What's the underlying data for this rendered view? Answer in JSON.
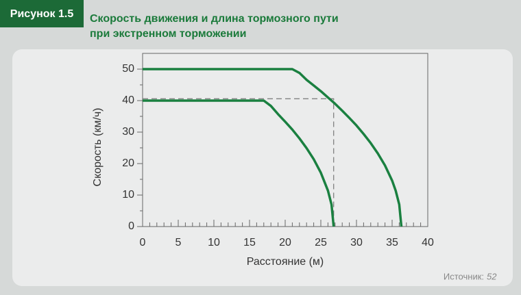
{
  "figure_label": "Рисунок 1.5",
  "source_label": "Источник:",
  "source_ref": "52",
  "chart_data": {
    "type": "line",
    "title": [
      "Скорость движения и длина тормозного пути",
      "при экстренном торможении"
    ],
    "xlabel": "Расстояние (м)",
    "ylabel": "Скорость (км/ч)",
    "series": [
      {
        "color": "#1a8040",
        "x": [
          0,
          21,
          22,
          23,
          24,
          25,
          26,
          27,
          28,
          29,
          30,
          31,
          32,
          33,
          34,
          35,
          35.5,
          36,
          36.3
        ],
        "values": [
          50,
          50,
          48.8,
          46.6,
          44.8,
          43.0,
          41.0,
          39.0,
          36.8,
          34.5,
          32.1,
          29.4,
          26.5,
          23.2,
          19.4,
          14.6,
          11.4,
          7.0,
          0
        ]
      },
      {
        "color": "#1a8040",
        "x": [
          0,
          17,
          18,
          19,
          20,
          21,
          22,
          23,
          24,
          25,
          26,
          26.5,
          26.8
        ],
        "values": [
          40,
          40,
          38.3,
          35.7,
          33.3,
          30.8,
          28.0,
          24.9,
          21.4,
          17.1,
          11.4,
          7.0,
          0
        ]
      }
    ],
    "reference": {
      "x": 26.8,
      "y": 40.6,
      "color": "#777"
    },
    "xlim": [
      0,
      40
    ],
    "ylim": [
      0,
      55
    ],
    "xticks": [
      0,
      5,
      10,
      15,
      20,
      25,
      30,
      35,
      40
    ],
    "yticks": [
      0,
      10,
      20,
      30,
      40,
      50
    ],
    "xminorticks": [
      1,
      2,
      3,
      4,
      6,
      7,
      8,
      9,
      11,
      12,
      13,
      14,
      16,
      17,
      18,
      19,
      21,
      22,
      23,
      24,
      26,
      27,
      28,
      29,
      31,
      32,
      33,
      34,
      36,
      37,
      38,
      39
    ],
    "yminorticks": [
      5,
      15,
      25,
      35,
      45
    ]
  }
}
